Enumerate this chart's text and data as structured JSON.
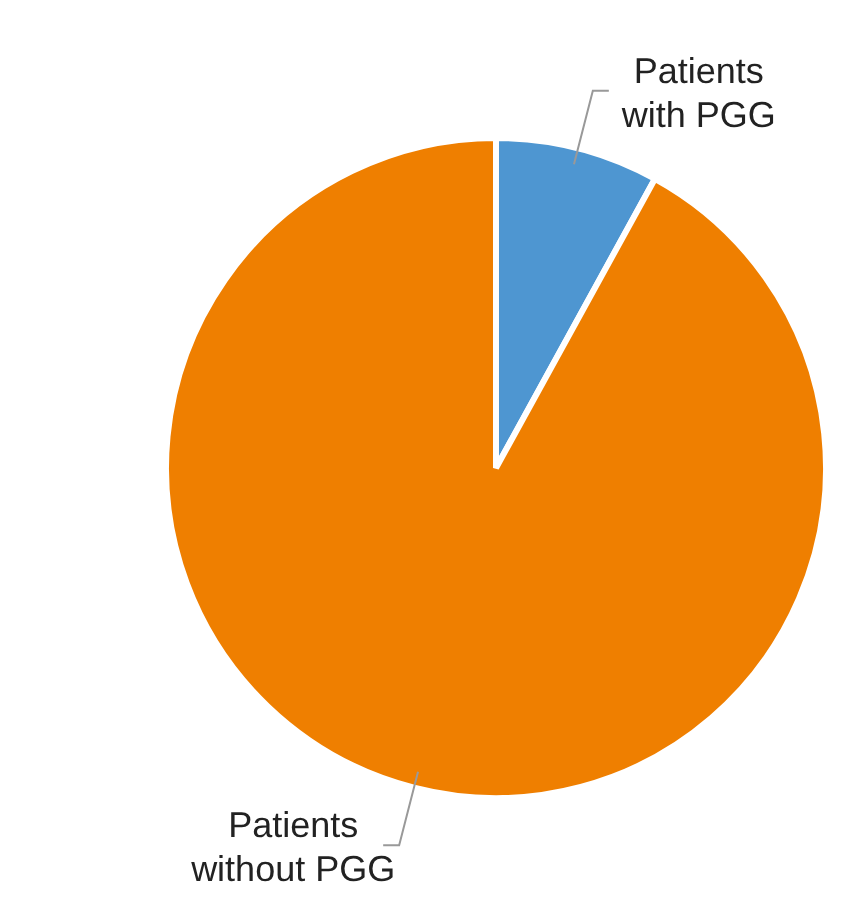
{
  "chart_data": {
    "type": "pie",
    "categories": [
      "Patients with PGG",
      "Patients without PGG"
    ],
    "values": [
      8,
      92
    ],
    "colors": [
      "#4e96d1",
      "#ef7f00"
    ]
  }
}
